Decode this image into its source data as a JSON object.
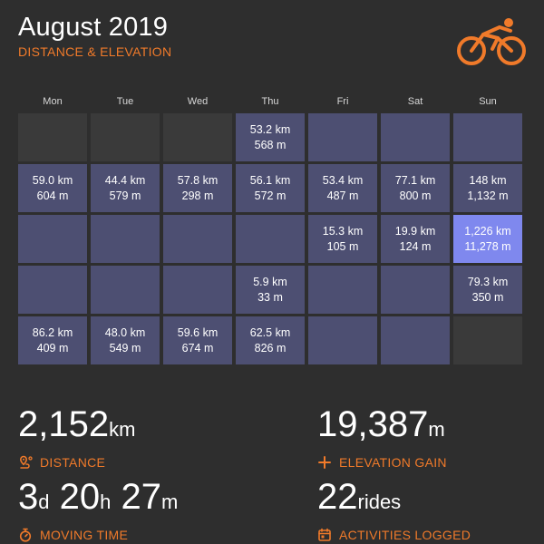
{
  "header": {
    "title": "August 2019",
    "subtitle": "DISTANCE & ELEVATION",
    "icon": "cyclist-icon",
    "accent_color": "#f07a2a"
  },
  "calendar": {
    "day_headers": [
      "Mon",
      "Tue",
      "Wed",
      "Thu",
      "Fri",
      "Sat",
      "Sun"
    ],
    "weeks": [
      [
        null,
        null,
        null,
        {
          "distance": "53.2 km",
          "elevation": "568 m"
        },
        {
          "distance": "",
          "elevation": ""
        },
        {
          "distance": "",
          "elevation": ""
        },
        {
          "distance": "",
          "elevation": ""
        }
      ],
      [
        {
          "distance": "59.0 km",
          "elevation": "604 m"
        },
        {
          "distance": "44.4 km",
          "elevation": "579 m"
        },
        {
          "distance": "57.8 km",
          "elevation": "298 m"
        },
        {
          "distance": "56.1 km",
          "elevation": "572 m"
        },
        {
          "distance": "53.4 km",
          "elevation": "487 m"
        },
        {
          "distance": "77.1 km",
          "elevation": "800 m"
        },
        {
          "distance": "148 km",
          "elevation": "1,132 m"
        }
      ],
      [
        {
          "distance": "",
          "elevation": ""
        },
        {
          "distance": "",
          "elevation": ""
        },
        {
          "distance": "",
          "elevation": ""
        },
        {
          "distance": "",
          "elevation": ""
        },
        {
          "distance": "15.3 km",
          "elevation": "105 m"
        },
        {
          "distance": "19.9 km",
          "elevation": "124 m"
        },
        {
          "distance": "1,226 km",
          "elevation": "11,278 m",
          "highlight": true
        }
      ],
      [
        {
          "distance": "",
          "elevation": ""
        },
        {
          "distance": "",
          "elevation": ""
        },
        {
          "distance": "",
          "elevation": ""
        },
        {
          "distance": "5.9 km",
          "elevation": "33 m"
        },
        {
          "distance": "",
          "elevation": ""
        },
        {
          "distance": "",
          "elevation": ""
        },
        {
          "distance": "79.3 km",
          "elevation": "350 m"
        }
      ],
      [
        {
          "distance": "86.2 km",
          "elevation": "409 m"
        },
        {
          "distance": "48.0 km",
          "elevation": "549 m"
        },
        {
          "distance": "59.6 km",
          "elevation": "674 m"
        },
        {
          "distance": "62.5 km",
          "elevation": "826 m"
        },
        {
          "distance": "",
          "elevation": ""
        },
        {
          "distance": "",
          "elevation": ""
        },
        null
      ]
    ]
  },
  "stats": {
    "distance": {
      "value": "2,152",
      "unit": "km",
      "label": "DISTANCE",
      "icon": "map-pin-route-icon"
    },
    "elevation": {
      "value": "19,387",
      "unit": "m",
      "label": "ELEVATION GAIN",
      "icon": "plus-icon"
    },
    "moving_time": {
      "days": "3",
      "days_unit": "d",
      "hours": "20",
      "hours_unit": "h",
      "minutes": "27",
      "minutes_unit": "m",
      "label": "MOVING TIME",
      "icon": "stopwatch-icon"
    },
    "activities": {
      "value": "22",
      "unit": "rides",
      "label": "ACTIVITIES LOGGED",
      "icon": "calendar-icon"
    }
  }
}
